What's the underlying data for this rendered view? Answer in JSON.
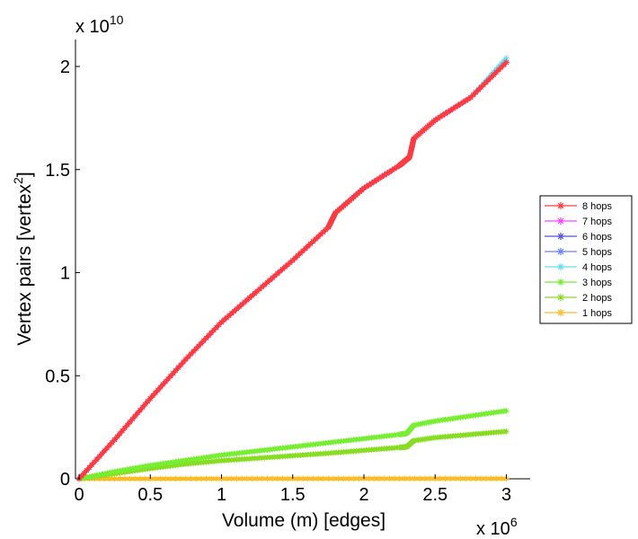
{
  "chart_data": {
    "type": "line",
    "title": "",
    "xlabel": "Volume (m) [edges]",
    "ylabel_main": "Vertex pairs [vertex",
    "ylabel_sup": "2",
    "ylabel_close": "]",
    "x_exponent_prefix": "x 10",
    "x_exponent": "6",
    "y_exponent_prefix": "x 10",
    "y_exponent": "10",
    "xlim": [
      0,
      3.2
    ],
    "ylim": [
      0,
      2.15
    ],
    "x_units_scale": 1000000,
    "y_units_scale": 10000000000,
    "xticks": [
      0,
      0.5,
      1,
      1.5,
      2,
      2.5,
      3
    ],
    "xtick_labels": [
      "0",
      "0.5",
      "1",
      "1.5",
      "2",
      "2.5",
      "3"
    ],
    "yticks": [
      0,
      0.5,
      1,
      1.5,
      2
    ],
    "ytick_labels": [
      "0",
      "0.5",
      "1",
      "1.5",
      "2"
    ],
    "legend_position": "right",
    "series": [
      {
        "name": "8 hops",
        "color": "#ff3b3b",
        "x": [
          0,
          0.25,
          0.5,
          0.75,
          1,
          1.25,
          1.5,
          1.75,
          1.8,
          2,
          2.25,
          2.32,
          2.35,
          2.5,
          2.75,
          3.0
        ],
        "y": [
          0,
          0.19,
          0.39,
          0.58,
          0.76,
          0.91,
          1.06,
          1.22,
          1.29,
          1.41,
          1.52,
          1.56,
          1.65,
          1.74,
          1.85,
          2.02
        ]
      },
      {
        "name": "7 hops",
        "color": "#ff44ff",
        "x": [
          0,
          0.25,
          0.5,
          0.75,
          1,
          1.25,
          1.5,
          1.75,
          1.8,
          2,
          2.25,
          2.32,
          2.35,
          2.5,
          2.75,
          3.0
        ],
        "y": [
          0,
          0.19,
          0.39,
          0.58,
          0.76,
          0.91,
          1.06,
          1.22,
          1.29,
          1.41,
          1.52,
          1.56,
          1.65,
          1.74,
          1.85,
          2.02
        ]
      },
      {
        "name": "6 hops",
        "color": "#5555dd",
        "x": [
          0,
          0.25,
          0.5,
          0.75,
          1,
          1.25,
          1.5,
          1.75,
          1.8,
          2,
          2.25,
          2.32,
          2.35,
          2.5,
          2.75,
          3.0
        ],
        "y": [
          0,
          0.19,
          0.39,
          0.58,
          0.76,
          0.91,
          1.06,
          1.22,
          1.29,
          1.41,
          1.52,
          1.56,
          1.65,
          1.74,
          1.85,
          2.02
        ]
      },
      {
        "name": "5 hops",
        "color": "#6a80ff",
        "x": [
          0,
          0.25,
          0.5,
          0.75,
          1,
          1.25,
          1.5,
          1.75,
          1.8,
          2,
          2.25,
          2.32,
          2.35,
          2.5,
          2.75,
          3.0
        ],
        "y": [
          0,
          0.19,
          0.39,
          0.58,
          0.76,
          0.91,
          1.06,
          1.22,
          1.29,
          1.41,
          1.52,
          1.56,
          1.65,
          1.74,
          1.85,
          2.02
        ]
      },
      {
        "name": "4 hops",
        "color": "#66ddee",
        "x": [
          0,
          0.25,
          0.5,
          0.75,
          1,
          1.25,
          1.5,
          1.75,
          1.8,
          2,
          2.25,
          2.32,
          2.35,
          2.5,
          2.75,
          3.0
        ],
        "y": [
          0,
          0.19,
          0.39,
          0.58,
          0.76,
          0.91,
          1.06,
          1.22,
          1.29,
          1.41,
          1.52,
          1.56,
          1.65,
          1.74,
          1.85,
          2.04
        ]
      },
      {
        "name": "3 hops",
        "color": "#77ee33",
        "x": [
          0,
          0.25,
          0.5,
          0.75,
          1,
          1.25,
          1.5,
          1.75,
          2,
          2.25,
          2.3,
          2.35,
          2.5,
          2.75,
          3.0
        ],
        "y": [
          0,
          0.035,
          0.065,
          0.09,
          0.115,
          0.135,
          0.155,
          0.175,
          0.195,
          0.215,
          0.22,
          0.26,
          0.28,
          0.305,
          0.33
        ]
      },
      {
        "name": "2 hops",
        "color": "#88dd22",
        "x": [
          0,
          0.25,
          0.5,
          0.75,
          1,
          1.25,
          1.5,
          1.75,
          2,
          2.25,
          2.3,
          2.35,
          2.5,
          2.75,
          3.0
        ],
        "y": [
          0,
          0.025,
          0.05,
          0.072,
          0.088,
          0.1,
          0.112,
          0.124,
          0.138,
          0.152,
          0.155,
          0.185,
          0.2,
          0.215,
          0.23
        ]
      },
      {
        "name": "1 hops",
        "color": "#ffbb22",
        "x": [
          0,
          0.5,
          1,
          1.5,
          2,
          2.5,
          3.0
        ],
        "y": [
          0,
          0,
          0.0005,
          0.0005,
          0.001,
          0.001,
          0.001
        ]
      }
    ]
  }
}
